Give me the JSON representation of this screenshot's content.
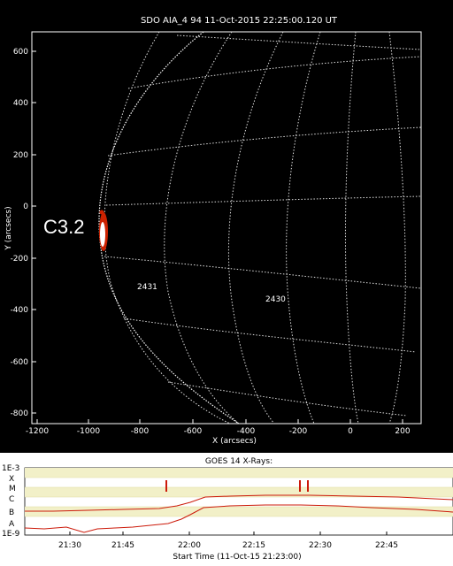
{
  "solar_image": {
    "title": "SDO AIA_4 94 11-Oct-2015 22:25:00.120 UT",
    "x_label": "X (arcsecs)",
    "y_label": "Y (arcsecs)",
    "x_ticks": [
      "-1200",
      "-1000",
      "-800",
      "-600",
      "-400",
      "-200",
      "0",
      "200"
    ],
    "y_ticks": [
      "600",
      "400",
      "200",
      "0",
      "-200",
      "-400",
      "-600",
      "-800"
    ],
    "flare_label": "C3.2",
    "regions": [
      {
        "label": "2431"
      },
      {
        "label": "2430"
      }
    ]
  },
  "goes": {
    "title": "GOES 14 X-Rays:",
    "y_levels": [
      "1E-3",
      "X",
      "M",
      "C",
      "B",
      "A",
      "1E-9"
    ],
    "time_ticks": [
      "21:30",
      "21:45",
      "22:00",
      "22:15",
      "22:30",
      "22:45"
    ],
    "x_label": "Start Time (11-Oct-15 21:23:00)",
    "colors": {
      "background": "#ffffff",
      "band": "#f2f0c8",
      "curve": "#cc1a0a"
    }
  }
}
